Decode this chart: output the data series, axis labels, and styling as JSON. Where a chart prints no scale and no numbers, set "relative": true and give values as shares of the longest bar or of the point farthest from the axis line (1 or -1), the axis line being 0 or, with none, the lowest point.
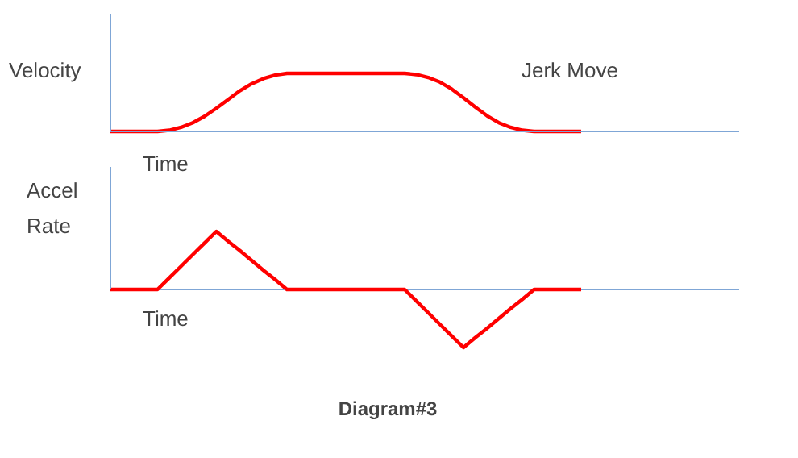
{
  "chart_data": [
    {
      "type": "line",
      "relative": true,
      "ylabel": "Velocity",
      "xlabel": "Time",
      "annotations": [
        "Jerk Move"
      ],
      "categories": [
        null,
        null,
        null,
        null,
        null,
        null,
        null,
        null,
        null,
        null,
        null,
        null,
        null,
        null,
        null,
        null,
        null,
        null,
        null,
        null,
        null,
        null,
        null,
        null,
        null,
        null,
        null,
        null,
        null,
        null,
        null,
        null,
        null,
        null,
        null,
        null,
        null,
        null,
        null,
        null,
        null
      ],
      "series": [
        {
          "color": "#ff0000",
          "values": [
            0,
            0,
            0,
            0,
            0,
            0.02,
            0.07,
            0.15,
            0.26,
            0.4,
            0.55,
            0.7,
            0.82,
            0.91,
            0.97,
            1,
            1,
            1,
            1,
            1,
            1,
            1,
            1,
            1,
            1,
            1,
            0.98,
            0.93,
            0.85,
            0.73,
            0.58,
            0.42,
            0.27,
            0.15,
            0.07,
            0.02,
            0,
            0,
            0,
            0,
            0
          ]
        }
      ]
    },
    {
      "type": "line",
      "relative": true,
      "ylabel": "Accel\nRate",
      "xlabel": "Time",
      "annotations": [
        "Diagram#3"
      ],
      "ref_lines": [
        {
          "axis": "y",
          "value": 0,
          "color": "#7fa6d6"
        }
      ],
      "categories": [
        null,
        null,
        null,
        null,
        null,
        null,
        null,
        null,
        null,
        null,
        null,
        null,
        null,
        null,
        null,
        null,
        null,
        null,
        null,
        null,
        null,
        null,
        null,
        null,
        null,
        null,
        null,
        null,
        null,
        null,
        null,
        null,
        null,
        null,
        null,
        null,
        null,
        null,
        null,
        null,
        null
      ],
      "series": [
        {
          "color": "#ff0000",
          "values": [
            0,
            0,
            0,
            0,
            0,
            0.2,
            0.4,
            0.6,
            0.8,
            1,
            0.83,
            0.67,
            0.5,
            0.33,
            0.17,
            0,
            0,
            0,
            0,
            0,
            0,
            0,
            0,
            0,
            0,
            0,
            -0.2,
            -0.4,
            -0.6,
            -0.8,
            -1,
            -0.83,
            -0.67,
            -0.5,
            -0.33,
            -0.17,
            0,
            0,
            0,
            0,
            0
          ]
        }
      ]
    }
  ]
}
